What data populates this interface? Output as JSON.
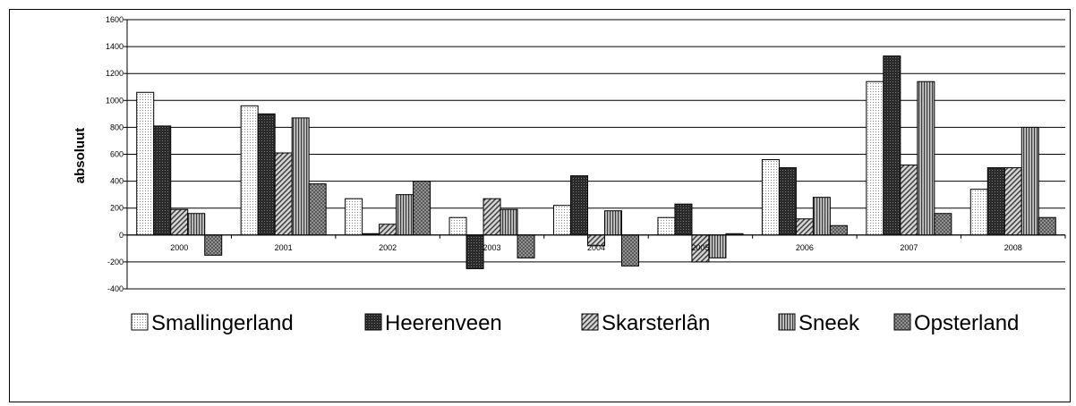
{
  "chart_data": {
    "type": "bar",
    "title": "",
    "xlabel": "",
    "ylabel": "absoluut",
    "ylim": [
      -400,
      1600
    ],
    "yticks": [
      -400,
      -200,
      0,
      200,
      400,
      600,
      800,
      1000,
      1200,
      1400,
      1600
    ],
    "grid": true,
    "legend_position": "bottom",
    "categories": [
      "2000",
      "2001",
      "2002",
      "2003",
      "2004",
      "2005",
      "2006",
      "2007",
      "2008"
    ],
    "series": [
      {
        "name": "Smallingerland",
        "values": [
          1060,
          960,
          270,
          130,
          220,
          130,
          560,
          1140,
          340
        ],
        "pattern": "dots-light"
      },
      {
        "name": "Heerenveen",
        "values": [
          810,
          900,
          10,
          -250,
          440,
          230,
          500,
          1330,
          500
        ],
        "pattern": "dots-dark"
      },
      {
        "name": "Skarsterlân",
        "values": [
          190,
          610,
          80,
          270,
          -80,
          -200,
          120,
          520,
          500
        ],
        "pattern": "diagonal"
      },
      {
        "name": "Sneek",
        "values": [
          160,
          870,
          300,
          190,
          180,
          -170,
          280,
          1140,
          800
        ],
        "pattern": "vertical"
      },
      {
        "name": "Opsterland",
        "values": [
          -150,
          380,
          400,
          -170,
          -230,
          10,
          70,
          160,
          130
        ],
        "pattern": "checker"
      }
    ]
  }
}
